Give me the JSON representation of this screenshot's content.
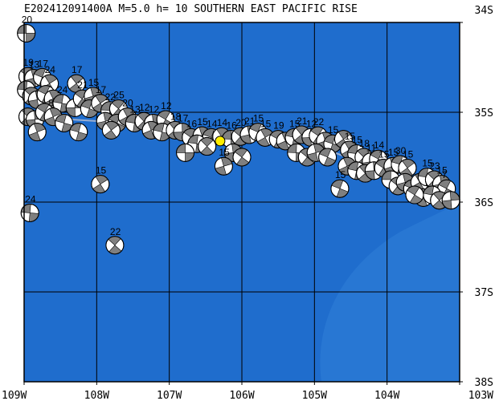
{
  "title": "E202412091400A M=5.0 h= 10 SOUTHERN EAST PACIFIC RISE",
  "axes": {
    "lon_min": -109,
    "lon_max": -103,
    "lat_min": -38,
    "lat_max": -34,
    "x_ticks": [
      {
        "value": -109,
        "label": "109W"
      },
      {
        "value": -108,
        "label": "108W"
      },
      {
        "value": -107,
        "label": "107W"
      },
      {
        "value": -106,
        "label": "106W"
      },
      {
        "value": -105,
        "label": "105W"
      },
      {
        "value": -104,
        "label": "104W"
      },
      {
        "value": -103,
        "label": "103W"
      }
    ],
    "y_ticks": [
      {
        "value": -34,
        "label": "34S"
      },
      {
        "value": -35,
        "label": "35S"
      },
      {
        "value": -36,
        "label": "36S"
      },
      {
        "value": -37,
        "label": "37S"
      },
      {
        "value": -38,
        "label": "38S"
      }
    ]
  },
  "colors": {
    "ocean": "#1f6dcd",
    "ocean_shallow": "#2f7fd8",
    "grid": "#000000",
    "ridge": "#9aaed0",
    "beachball_dark": "#7f7f7f",
    "beachball_light": "#ffffff",
    "epicenter": "#ffee00"
  },
  "epicenter": {
    "lon": -106.3,
    "lat": -35.32
  },
  "ridge_path": [
    {
      "lon": -108.95,
      "lat": -35.05
    },
    {
      "lon": -107.95,
      "lat": -35.1
    },
    {
      "lon": -107.0,
      "lat": -35.2
    },
    {
      "lon": -106.0,
      "lat": -35.25
    },
    {
      "lon": -105.2,
      "lat": -35.3
    },
    {
      "lon": -104.4,
      "lat": -35.55
    },
    {
      "lon": -103.6,
      "lat": -35.75
    },
    {
      "lon": -103.05,
      "lat": -35.95
    }
  ],
  "events": [
    {
      "lon": -108.97,
      "lat": -34.12,
      "label": "20"
    },
    {
      "lon": -108.95,
      "lat": -34.6,
      "label": "19"
    },
    {
      "lon": -108.87,
      "lat": -34.62,
      "label": "13"
    },
    {
      "lon": -108.75,
      "lat": -34.61,
      "label": "17"
    },
    {
      "lon": -108.65,
      "lat": -34.68,
      "label": "24"
    },
    {
      "lon": -108.97,
      "lat": -34.75,
      "label": ""
    },
    {
      "lon": -108.9,
      "lat": -34.82,
      "label": ""
    },
    {
      "lon": -108.82,
      "lat": -34.86,
      "label": ""
    },
    {
      "lon": -108.7,
      "lat": -34.8,
      "label": ""
    },
    {
      "lon": -108.6,
      "lat": -34.85,
      "label": ""
    },
    {
      "lon": -108.48,
      "lat": -34.9,
      "label": "24"
    },
    {
      "lon": -108.95,
      "lat": -35.05,
      "label": ""
    },
    {
      "lon": -108.85,
      "lat": -35.08,
      "label": ""
    },
    {
      "lon": -108.72,
      "lat": -35.0,
      "label": ""
    },
    {
      "lon": -108.6,
      "lat": -35.05,
      "label": "8"
    },
    {
      "lon": -108.45,
      "lat": -35.12,
      "label": ""
    },
    {
      "lon": -108.28,
      "lat": -34.68,
      "label": "17"
    },
    {
      "lon": -108.3,
      "lat": -34.95,
      "label": ""
    },
    {
      "lon": -108.2,
      "lat": -34.85,
      "label": "21"
    },
    {
      "lon": -108.05,
      "lat": -34.82,
      "label": "15"
    },
    {
      "lon": -108.1,
      "lat": -34.96,
      "label": ""
    },
    {
      "lon": -107.95,
      "lat": -34.9,
      "label": "17"
    },
    {
      "lon": -107.82,
      "lat": -34.98,
      "label": "22"
    },
    {
      "lon": -107.7,
      "lat": -34.96,
      "label": "25"
    },
    {
      "lon": -107.88,
      "lat": -35.1,
      "label": ""
    },
    {
      "lon": -107.72,
      "lat": -35.12,
      "label": ""
    },
    {
      "lon": -107.58,
      "lat": -35.05,
      "label": "20"
    },
    {
      "lon": -107.48,
      "lat": -35.12,
      "label": "13"
    },
    {
      "lon": -107.35,
      "lat": -35.1,
      "label": "12"
    },
    {
      "lon": -107.22,
      "lat": -35.12,
      "label": "12"
    },
    {
      "lon": -107.05,
      "lat": -35.08,
      "label": "12"
    },
    {
      "lon": -107.25,
      "lat": -35.2,
      "label": ""
    },
    {
      "lon": -107.1,
      "lat": -35.22,
      "label": ""
    },
    {
      "lon": -106.92,
      "lat": -35.2,
      "label": "18"
    },
    {
      "lon": -106.82,
      "lat": -35.22,
      "label": "17"
    },
    {
      "lon": -106.7,
      "lat": -35.28,
      "label": "16"
    },
    {
      "lon": -106.55,
      "lat": -35.26,
      "label": "15"
    },
    {
      "lon": -106.42,
      "lat": -35.28,
      "label": "14"
    },
    {
      "lon": -106.28,
      "lat": -35.27,
      "label": "14"
    },
    {
      "lon": -106.15,
      "lat": -35.3,
      "label": "16"
    },
    {
      "lon": -106.02,
      "lat": -35.27,
      "label": "20"
    },
    {
      "lon": -105.9,
      "lat": -35.25,
      "label": "21"
    },
    {
      "lon": -105.78,
      "lat": -35.22,
      "label": "15"
    },
    {
      "lon": -105.68,
      "lat": -35.28,
      "label": "15"
    },
    {
      "lon": -106.62,
      "lat": -35.35,
      "label": ""
    },
    {
      "lon": -106.48,
      "lat": -35.38,
      "label": ""
    },
    {
      "lon": -106.12,
      "lat": -35.45,
      "label": ""
    },
    {
      "lon": -105.5,
      "lat": -35.3,
      "label": "19"
    },
    {
      "lon": -105.4,
      "lat": -35.32,
      "label": ""
    },
    {
      "lon": -105.28,
      "lat": -35.28,
      "label": "15"
    },
    {
      "lon": -105.18,
      "lat": -35.25,
      "label": "21"
    },
    {
      "lon": -105.05,
      "lat": -35.28,
      "label": "12"
    },
    {
      "lon": -104.95,
      "lat": -35.26,
      "label": "22"
    },
    {
      "lon": -104.85,
      "lat": -35.32,
      "label": ""
    },
    {
      "lon": -104.75,
      "lat": -35.35,
      "label": "15"
    },
    {
      "lon": -104.6,
      "lat": -35.3,
      "label": ""
    },
    {
      "lon": -105.25,
      "lat": -35.45,
      "label": ""
    },
    {
      "lon": -105.1,
      "lat": -35.5,
      "label": ""
    },
    {
      "lon": -104.98,
      "lat": -35.45,
      "label": ""
    },
    {
      "lon": -104.82,
      "lat": -35.5,
      "label": ""
    },
    {
      "lon": -104.52,
      "lat": -35.42,
      "label": "15"
    },
    {
      "lon": -104.42,
      "lat": -35.46,
      "label": "15"
    },
    {
      "lon": -104.32,
      "lat": -35.5,
      "label": "18"
    },
    {
      "lon": -104.22,
      "lat": -35.55,
      "label": "11"
    },
    {
      "lon": -104.12,
      "lat": -35.52,
      "label": "14"
    },
    {
      "lon": -104.55,
      "lat": -35.6,
      "label": ""
    },
    {
      "lon": -104.42,
      "lat": -35.65,
      "label": ""
    },
    {
      "lon": -104.3,
      "lat": -35.68,
      "label": ""
    },
    {
      "lon": -104.18,
      "lat": -35.65,
      "label": ""
    },
    {
      "lon": -104.05,
      "lat": -35.62,
      "label": "15"
    },
    {
      "lon": -103.92,
      "lat": -35.6,
      "label": "15"
    },
    {
      "lon": -103.82,
      "lat": -35.58,
      "label": "30"
    },
    {
      "lon": -103.72,
      "lat": -35.62,
      "label": "15"
    },
    {
      "lon": -103.95,
      "lat": -35.75,
      "label": ""
    },
    {
      "lon": -103.85,
      "lat": -35.82,
      "label": ""
    },
    {
      "lon": -103.75,
      "lat": -35.78,
      "label": ""
    },
    {
      "lon": -103.65,
      "lat": -35.85,
      "label": ""
    },
    {
      "lon": -103.55,
      "lat": -35.78,
      "label": ""
    },
    {
      "lon": -103.45,
      "lat": -35.72,
      "label": "15"
    },
    {
      "lon": -103.35,
      "lat": -35.75,
      "label": "23"
    },
    {
      "lon": -103.25,
      "lat": -35.8,
      "label": "15"
    },
    {
      "lon": -103.18,
      "lat": -35.85,
      "label": "7"
    },
    {
      "lon": -103.5,
      "lat": -35.95,
      "label": ""
    },
    {
      "lon": -103.38,
      "lat": -35.92,
      "label": ""
    },
    {
      "lon": -103.28,
      "lat": -35.98,
      "label": ""
    },
    {
      "lon": -103.12,
      "lat": -35.98,
      "label": ""
    },
    {
      "lon": -103.62,
      "lat": -35.92,
      "label": ""
    },
    {
      "lon": -108.82,
      "lat": -35.22,
      "label": ""
    },
    {
      "lon": -108.25,
      "lat": -35.22,
      "label": ""
    },
    {
      "lon": -107.8,
      "lat": -35.2,
      "label": ""
    },
    {
      "lon": -106.78,
      "lat": -35.45,
      "label": ""
    },
    {
      "lon": -106.0,
      "lat": -35.5,
      "label": ""
    },
    {
      "lon": -106.25,
      "lat": -35.6,
      "label": "15"
    },
    {
      "lon": -104.65,
      "lat": -35.85,
      "label": "15"
    },
    {
      "lon": -107.95,
      "lat": -35.8,
      "label": "15"
    },
    {
      "lon": -108.92,
      "lat": -36.12,
      "label": "24"
    },
    {
      "lon": -107.75,
      "lat": -36.48,
      "label": "22"
    }
  ]
}
